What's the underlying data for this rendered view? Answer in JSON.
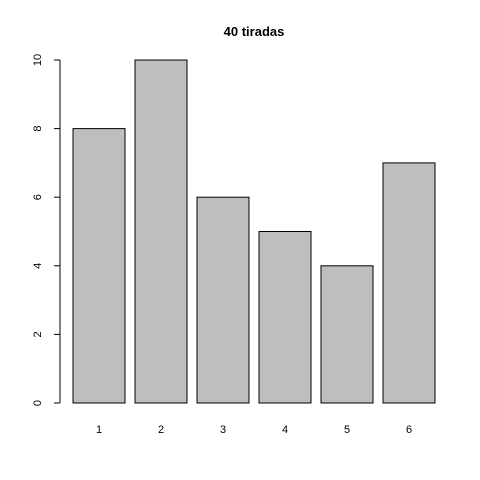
{
  "chart_data": {
    "type": "bar",
    "title": "40 tiradas",
    "categories": [
      "1",
      "2",
      "3",
      "4",
      "5",
      "6"
    ],
    "values": [
      8,
      10,
      6,
      5,
      4,
      7
    ],
    "xlabel": "",
    "ylabel": "",
    "ylim": [
      0,
      10
    ],
    "yticks": [
      0,
      2,
      4,
      6,
      8,
      10
    ],
    "grid": false,
    "legend": "none",
    "colors": {
      "bar_fill": "#bebebe",
      "bar_stroke": "#000000",
      "background": "#ffffff"
    }
  }
}
